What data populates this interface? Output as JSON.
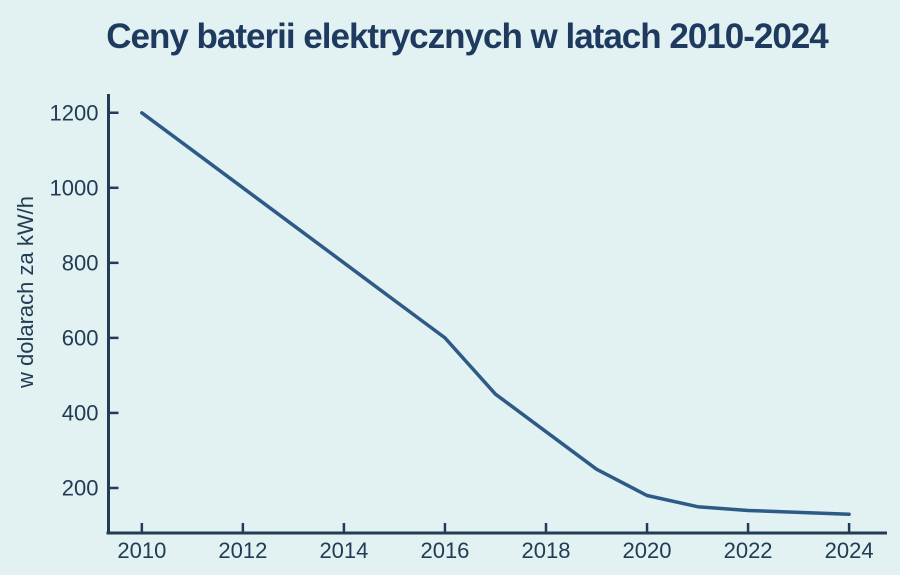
{
  "chart_data": {
    "type": "line",
    "title": "Ceny baterii elektrycznych w latach 2010-2024",
    "xlabel": "",
    "ylabel": "w dolarach za kW/h",
    "x": [
      2010,
      2011,
      2012,
      2013,
      2014,
      2015,
      2016,
      2017,
      2018,
      2019,
      2020,
      2021,
      2022,
      2023,
      2024
    ],
    "values": [
      1200,
      1100,
      1000,
      900,
      800,
      700,
      600,
      450,
      350,
      250,
      180,
      150,
      140,
      135,
      130
    ],
    "x_ticks": [
      2010,
      2012,
      2014,
      2016,
      2018,
      2020,
      2022,
      2024
    ],
    "y_ticks": [
      200,
      400,
      600,
      800,
      1000,
      1200
    ],
    "xlim": [
      2009.34,
      2024.75
    ],
    "ylim": [
      80,
      1250
    ],
    "grid": false,
    "legend": "none",
    "markers": false,
    "colors": {
      "line": "#2e5a87",
      "axis": "#223c55",
      "title": "#1e3a5e",
      "background": "#e2f1f1"
    }
  }
}
